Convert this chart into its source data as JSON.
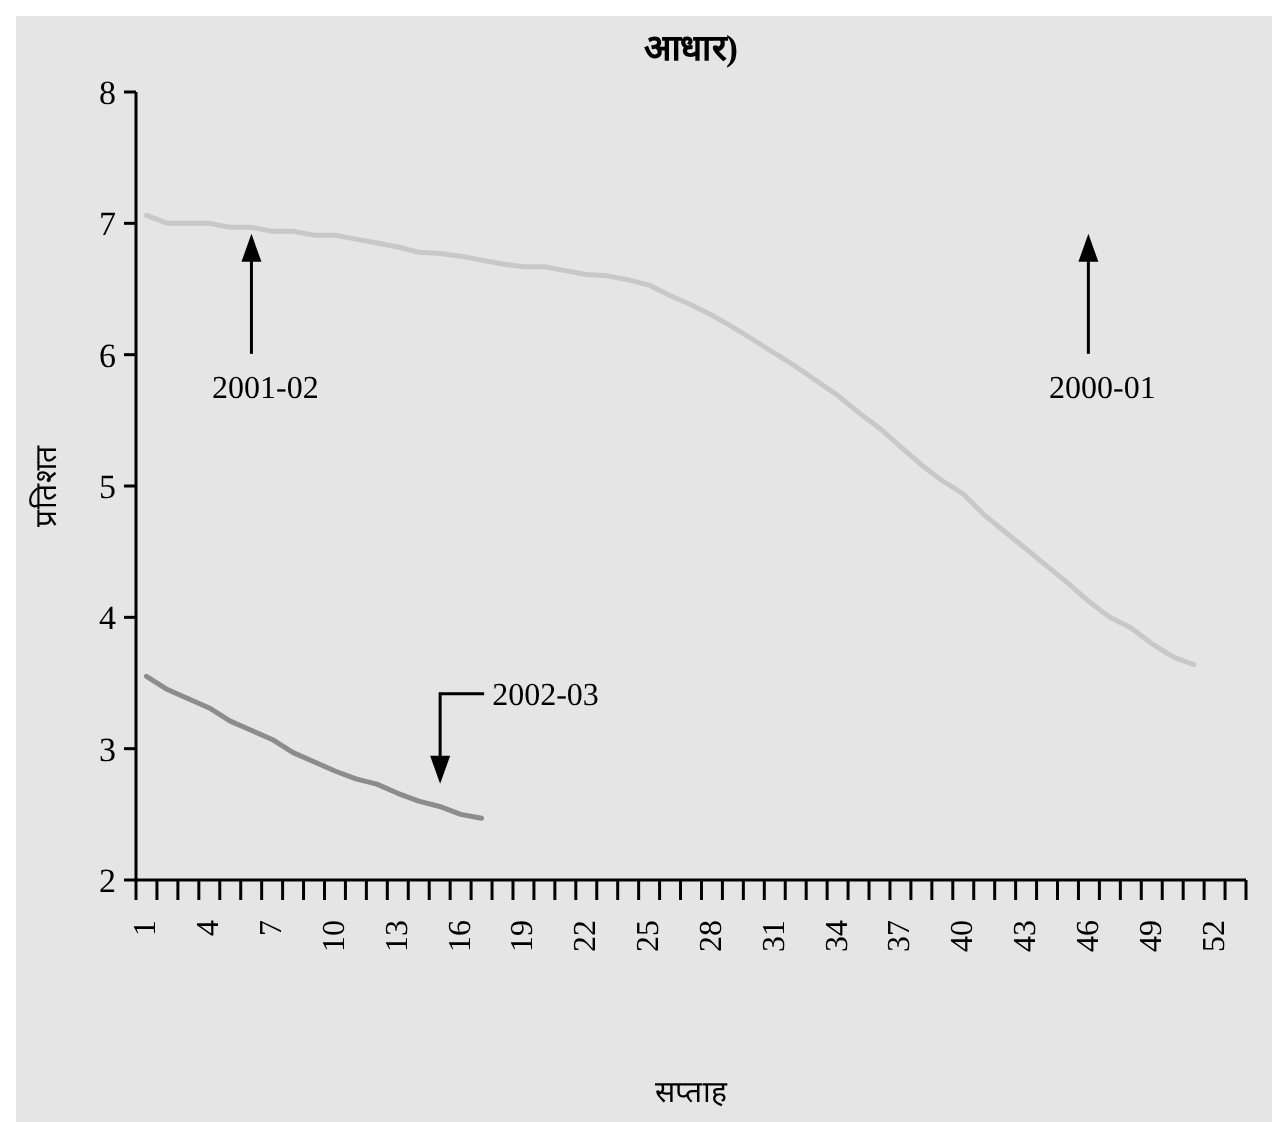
{
  "chart_data": {
    "type": "line",
    "title": "आधार)",
    "xlabel": "सप्ताह",
    "ylabel": "प्रतिशत",
    "categories": [
      "1",
      null,
      null,
      "4",
      null,
      null,
      "7",
      null,
      null,
      "10",
      null,
      null,
      "13",
      null,
      null,
      "16",
      null,
      null,
      "19",
      null,
      null,
      "22",
      null,
      null,
      "25",
      null,
      null,
      "28",
      null,
      null,
      "31",
      null,
      null,
      "34",
      null,
      null,
      "37",
      null,
      null,
      "40",
      null,
      null,
      "43",
      null,
      null,
      "46",
      null,
      null,
      "49",
      null,
      null,
      "52",
      null
    ],
    "ylim": [
      2,
      8
    ],
    "yticks": [
      2,
      3,
      4,
      5,
      6,
      7,
      8
    ],
    "grid": false,
    "marker": "none",
    "line_style": "solid",
    "series": [
      {
        "color": "#c8c8c8",
        "values": [
          7.06,
          7.0,
          7.0,
          7.0,
          6.97,
          6.97,
          6.94,
          6.94,
          6.91,
          6.91,
          6.88,
          6.85,
          6.82,
          6.78,
          6.77,
          6.75,
          6.72,
          6.69,
          6.67,
          6.67,
          6.64,
          6.61,
          6.6,
          6.57,
          6.53,
          6.45,
          6.38,
          6.3,
          6.21,
          6.11,
          6.01,
          5.91,
          5.8,
          5.69,
          5.56,
          5.44,
          5.3,
          5.16,
          5.04,
          4.94,
          4.78,
          4.65,
          4.52,
          4.39,
          4.26,
          4.12,
          4.0,
          3.92,
          3.8,
          3.7,
          3.64,
          null,
          null
        ]
      },
      {
        "color": "#8c8c8c",
        "values": [
          3.55,
          3.45,
          3.38,
          3.31,
          3.21,
          3.14,
          3.07,
          2.97,
          2.9,
          2.83,
          2.77,
          2.73,
          2.66,
          2.6,
          2.56,
          2.5,
          2.47,
          null,
          null,
          null,
          null,
          null,
          null,
          null,
          null,
          null,
          null,
          null,
          null,
          null,
          null,
          null,
          null,
          null,
          null,
          null,
          null,
          null,
          null,
          null,
          null,
          null,
          null,
          null,
          null,
          null,
          null,
          null,
          null,
          null,
          null,
          null,
          null
        ]
      }
    ],
    "annotations": [
      "2001-02",
      "2000-01",
      "2002-03"
    ]
  }
}
